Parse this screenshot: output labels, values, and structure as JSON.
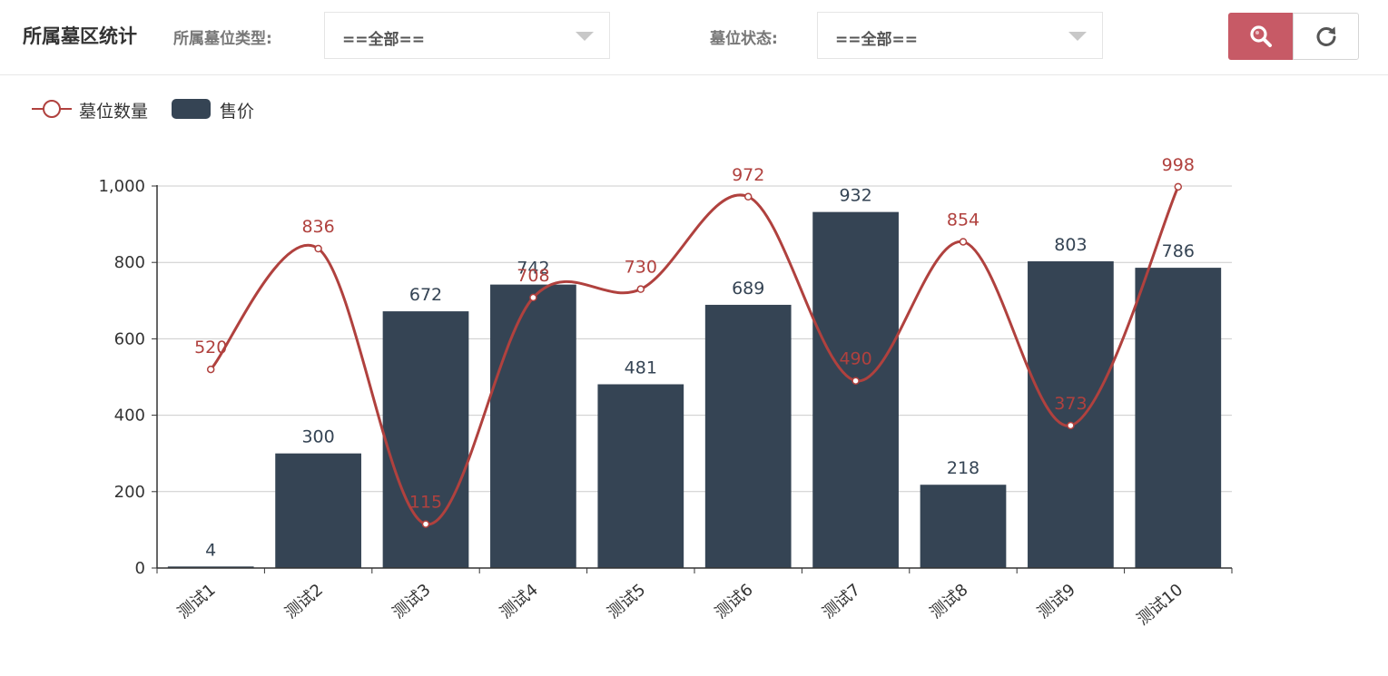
{
  "header": {
    "title": "所属墓区统计",
    "type_label": "所属墓位类型:",
    "type_value": "==全部==",
    "status_label": "墓位状态:",
    "status_value": "==全部==",
    "search_icon": "search-icon",
    "refresh_icon": "refresh-icon"
  },
  "colors": {
    "line": "#b0413e",
    "bar": "#354454",
    "search_button": "#c75a66",
    "refresh_icon": "#555555"
  },
  "chart_data": {
    "type": "bar",
    "categories": [
      "测试1",
      "测试2",
      "测试3",
      "测试4",
      "测试5",
      "测试6",
      "测试7",
      "测试8",
      "测试9",
      "测试10"
    ],
    "series": [
      {
        "name": "墓位数量",
        "type": "line",
        "smooth": true,
        "color": "#b0413e",
        "values": [
          520,
          836,
          115,
          708,
          730,
          972,
          490,
          854,
          373,
          998
        ]
      },
      {
        "name": "售价",
        "type": "bar",
        "color": "#354454",
        "values": [
          4,
          300,
          672,
          742,
          481,
          689,
          932,
          218,
          803,
          786
        ]
      }
    ],
    "ylim": [
      0,
      1000
    ],
    "yticks": [
      "0",
      "200",
      "400",
      "600",
      "800",
      "1,000"
    ],
    "grid": true,
    "legend": "top-left",
    "xlabel": "",
    "ylabel": "",
    "title": ""
  }
}
